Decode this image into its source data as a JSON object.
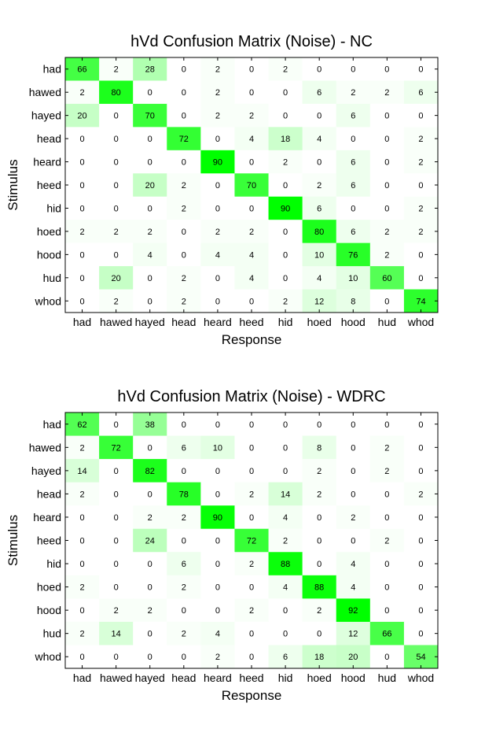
{
  "chart_data": [
    {
      "type": "heatmap",
      "title": "hVd Confusion Matrix (Noise) - NC",
      "xlabel": "Response",
      "ylabel": "Stimulus",
      "x_categories": [
        "had",
        "hawed",
        "hayed",
        "head",
        "heard",
        "heed",
        "hid",
        "hoed",
        "hood",
        "hud",
        "whod"
      ],
      "y_categories": [
        "had",
        "hawed",
        "hayed",
        "head",
        "heard",
        "heed",
        "hid",
        "hoed",
        "hood",
        "hud",
        "whod"
      ],
      "values": [
        [
          66,
          2,
          28,
          0,
          2,
          0,
          2,
          0,
          0,
          0,
          0
        ],
        [
          2,
          80,
          0,
          0,
          2,
          0,
          0,
          6,
          2,
          2,
          6
        ],
        [
          20,
          0,
          70,
          0,
          2,
          2,
          0,
          0,
          6,
          0,
          0
        ],
        [
          0,
          0,
          0,
          72,
          0,
          4,
          18,
          4,
          0,
          0,
          2
        ],
        [
          0,
          0,
          0,
          0,
          90,
          0,
          2,
          0,
          6,
          0,
          2
        ],
        [
          0,
          0,
          20,
          2,
          0,
          70,
          0,
          2,
          6,
          0,
          0
        ],
        [
          0,
          0,
          0,
          2,
          0,
          0,
          90,
          6,
          0,
          0,
          2
        ],
        [
          2,
          2,
          2,
          0,
          2,
          2,
          0,
          80,
          6,
          2,
          2
        ],
        [
          0,
          0,
          4,
          0,
          4,
          4,
          0,
          10,
          76,
          2,
          0
        ],
        [
          0,
          20,
          0,
          2,
          0,
          4,
          0,
          4,
          10,
          60,
          0
        ],
        [
          0,
          2,
          0,
          2,
          0,
          0,
          2,
          12,
          8,
          0,
          74
        ]
      ],
      "colormap": {
        "low": "#ffffff",
        "high": "#00ff00"
      },
      "vmax": 90
    },
    {
      "type": "heatmap",
      "title": "hVd Confusion Matrix (Noise) - WDRC",
      "xlabel": "Response",
      "ylabel": "Stimulus",
      "x_categories": [
        "had",
        "hawed",
        "hayed",
        "head",
        "heard",
        "heed",
        "hid",
        "hoed",
        "hood",
        "hud",
        "whod"
      ],
      "y_categories": [
        "had",
        "hawed",
        "hayed",
        "head",
        "heard",
        "heed",
        "hid",
        "hoed",
        "hood",
        "hud",
        "whod"
      ],
      "values": [
        [
          62,
          0,
          38,
          0,
          0,
          0,
          0,
          0,
          0,
          0,
          0
        ],
        [
          2,
          72,
          0,
          6,
          10,
          0,
          0,
          8,
          0,
          2,
          0
        ],
        [
          14,
          0,
          82,
          0,
          0,
          0,
          0,
          2,
          0,
          2,
          0
        ],
        [
          2,
          0,
          0,
          78,
          0,
          2,
          14,
          2,
          0,
          0,
          2
        ],
        [
          0,
          0,
          2,
          2,
          90,
          0,
          4,
          0,
          2,
          0,
          0
        ],
        [
          0,
          0,
          24,
          0,
          0,
          72,
          2,
          0,
          0,
          2,
          0
        ],
        [
          0,
          0,
          0,
          6,
          0,
          2,
          88,
          0,
          4,
          0,
          0
        ],
        [
          2,
          0,
          0,
          2,
          0,
          0,
          4,
          88,
          4,
          0,
          0
        ],
        [
          0,
          2,
          2,
          0,
          0,
          2,
          0,
          2,
          92,
          0,
          0
        ],
        [
          2,
          14,
          0,
          2,
          4,
          0,
          0,
          0,
          12,
          66,
          0
        ],
        [
          0,
          0,
          0,
          0,
          2,
          0,
          6,
          18,
          20,
          0,
          54
        ]
      ],
      "colormap": {
        "low": "#ffffff",
        "high": "#00ff00"
      },
      "vmax": 92
    }
  ]
}
